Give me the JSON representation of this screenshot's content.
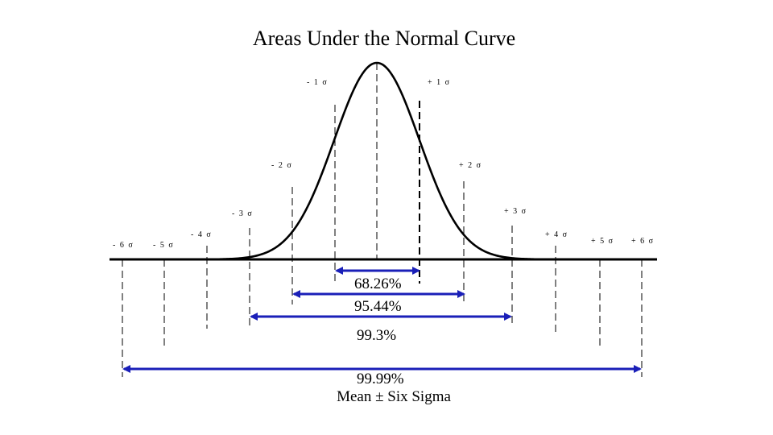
{
  "title": "Areas Under the Normal Curve",
  "colors": {
    "arrow": "#1a1fb8",
    "line": "#000000"
  },
  "sigma_labels": {
    "m1": "- 1 σ",
    "p1": "+ 1 σ",
    "m2": "- 2 σ",
    "p2": "+ 2 σ",
    "m3": "- 3 σ",
    "p3": "+ 3 σ",
    "m4": "- 4 σ",
    "p4": "+ 4 σ",
    "m5": "- 5 σ",
    "p5": "+ 5 σ",
    "m6": "- 6 σ",
    "p6": "+ 6 σ"
  },
  "ranges": {
    "r1": "68.26%",
    "r2": "95.44%",
    "r3": "99.3%",
    "r6": "99.99%"
  },
  "footer": "Mean ± Six Sigma"
}
